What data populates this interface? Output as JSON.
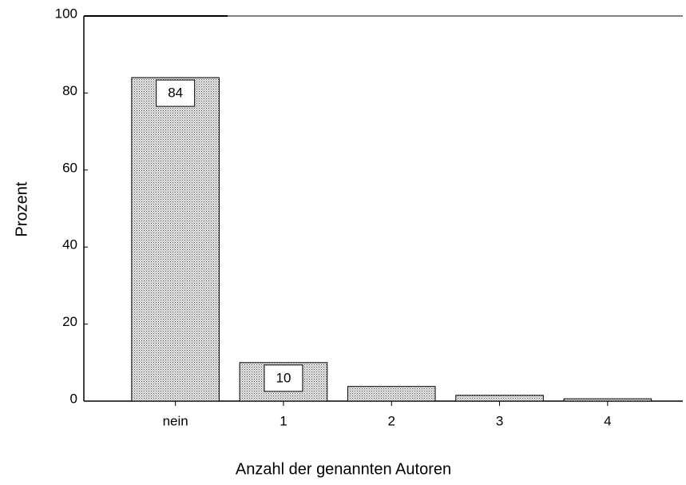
{
  "chart_data": {
    "type": "bar",
    "x_label": "Anzahl der genannten Autoren",
    "y_label": "Prozent",
    "categories": [
      "nein",
      "1",
      "2",
      "3",
      "4"
    ],
    "values": [
      84,
      10,
      3.8,
      1.5,
      0.6
    ],
    "value_labels": [
      "84",
      "10",
      null,
      null,
      null
    ],
    "color": "#c8c8c8",
    "ylim": [
      0,
      100
    ],
    "yticks": [
      0,
      20,
      40,
      60,
      80,
      100
    ],
    "grid": false
  }
}
